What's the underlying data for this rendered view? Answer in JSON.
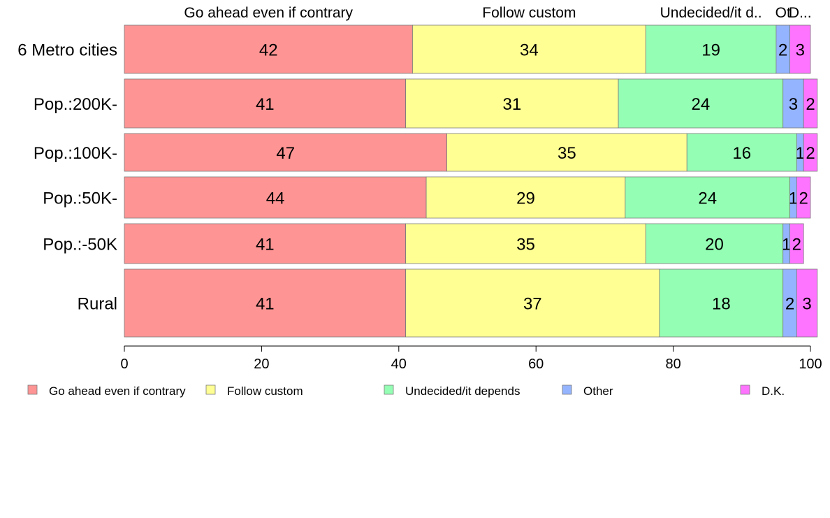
{
  "chart_data": {
    "type": "bar",
    "orientation": "horizontal",
    "stacked": true,
    "categories": [
      "6 Metro cities",
      "Pop.:200K-",
      "Pop.:100K-",
      "Pop.:50K-",
      "Pop.:-50K",
      "Rural"
    ],
    "series": [
      {
        "name": "Go ahead even if contrary",
        "color": "#ff9494",
        "values": [
          42,
          41,
          47,
          44,
          41,
          41
        ],
        "labels": [
          "42",
          "41",
          "47",
          "44",
          "41",
          "41"
        ]
      },
      {
        "name": "Follow custom",
        "color": "#ffff94",
        "values": [
          34,
          31,
          35,
          29,
          35,
          37
        ],
        "labels": [
          "34",
          "31",
          "35",
          "29",
          "35",
          "37"
        ]
      },
      {
        "name": "Undecided/it depends",
        "color": "#94ffb4",
        "values": [
          19,
          24,
          16,
          24,
          20,
          18
        ],
        "labels": [
          "19",
          "24",
          "16",
          "24",
          "20",
          "18"
        ]
      },
      {
        "name": "Other",
        "color": "#94b4ff",
        "values": [
          2,
          3,
          1,
          1,
          1,
          2
        ],
        "labels": [
          "2",
          "3",
          "1",
          "1",
          "1",
          "2"
        ]
      },
      {
        "name": "D.K.",
        "color": "#ff74ff",
        "values": [
          3,
          2,
          2,
          2,
          2,
          3
        ],
        "labels": [
          "3",
          "2",
          "2",
          "2",
          "2",
          "3"
        ]
      }
    ],
    "top_labels": [
      "Go ahead even if contrary",
      "Follow custom",
      "Undecided/it d..",
      "Ot",
      "D..."
    ],
    "xlim": [
      0,
      100
    ],
    "xticks": [
      "0",
      "20",
      "40",
      "60",
      "80",
      "100"
    ],
    "legend": "bottom",
    "grid": false
  }
}
